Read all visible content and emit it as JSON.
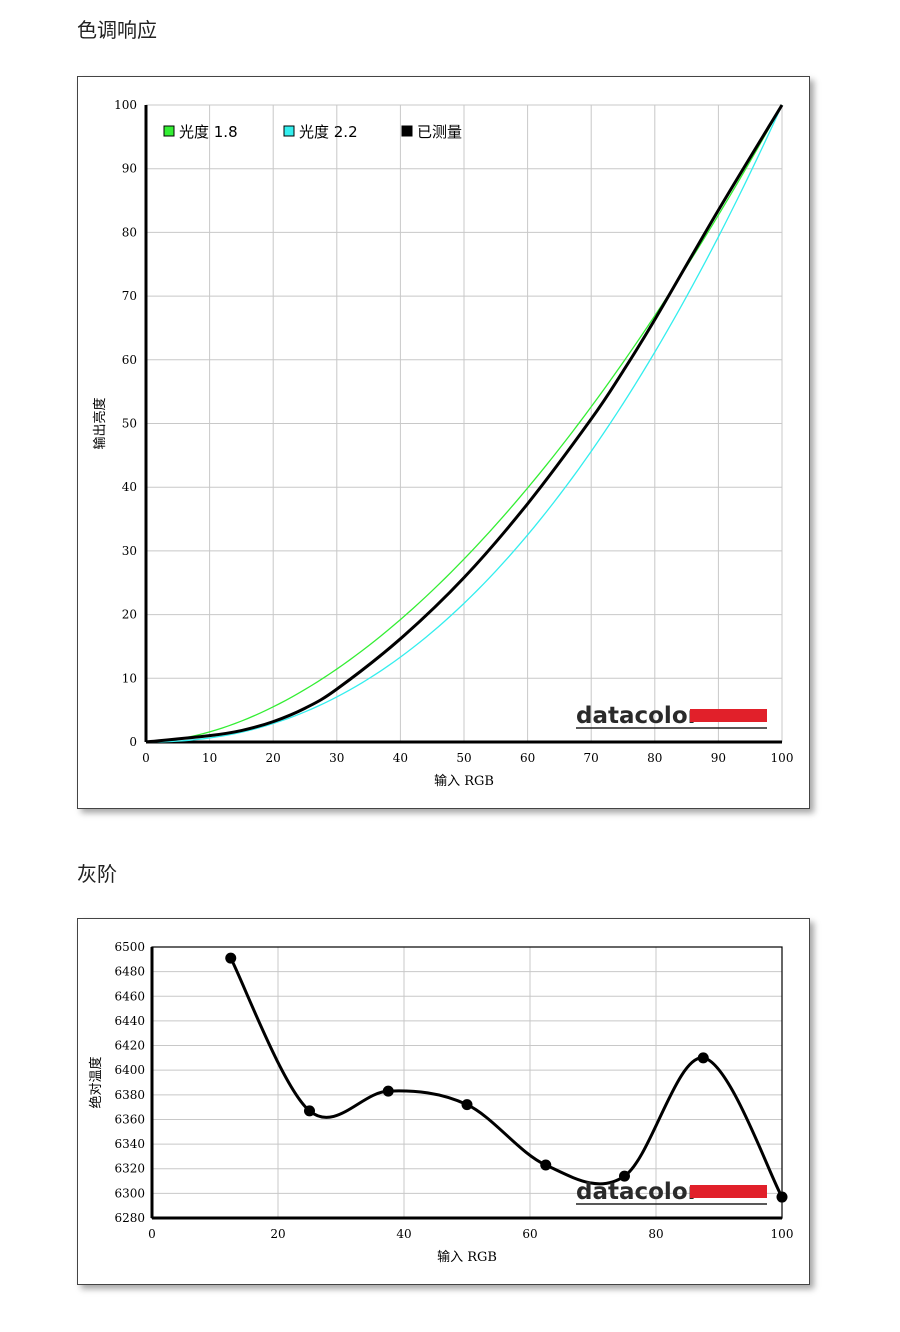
{
  "sections": {
    "tone_title": "色调响应",
    "gray_title": "灰阶"
  },
  "brand": {
    "text": "datacolor",
    "bar_color": "#e1202a"
  },
  "chart_data": [
    {
      "type": "line",
      "xlabel": "输入 RGB",
      "ylabel": "输出亮度",
      "xlim": [
        0,
        100
      ],
      "ylim": [
        0,
        100
      ],
      "xticks": [
        0,
        10,
        20,
        30,
        40,
        50,
        60,
        70,
        80,
        90,
        100
      ],
      "yticks": [
        0,
        10,
        20,
        30,
        40,
        50,
        60,
        70,
        80,
        90,
        100
      ],
      "grid": true,
      "legend_position": "top-left",
      "series": [
        {
          "name": "光度 1.8",
          "color": "#33ee33",
          "gamma": 1.8,
          "x": [
            0,
            10,
            20,
            30,
            40,
            50,
            60,
            70,
            80,
            90,
            100
          ],
          "y": [
            0,
            1.6,
            5.5,
            11.5,
            19.2,
            28.7,
            39.9,
            52.6,
            66.9,
            82.7,
            100
          ]
        },
        {
          "name": "光度 2.2",
          "color": "#33eeee",
          "gamma": 2.2,
          "x": [
            0,
            10,
            20,
            30,
            40,
            50,
            60,
            70,
            80,
            90,
            100
          ],
          "y": [
            0,
            0.6,
            2.9,
            7.1,
            13.3,
            21.8,
            32.5,
            45.6,
            61.2,
            79.3,
            100
          ]
        },
        {
          "name": "已测量",
          "color": "#000000",
          "x": [
            0,
            10,
            15,
            20,
            25,
            30,
            40,
            50,
            60,
            70,
            75,
            80,
            90,
            100
          ],
          "y": [
            0,
            1.0,
            1.8,
            3.2,
            5.3,
            8.3,
            16.2,
            25.8,
            37.4,
            50.7,
            58.2,
            66.3,
            83.5,
            100
          ]
        }
      ]
    },
    {
      "type": "line",
      "xlabel": "输入 RGB",
      "ylabel": "绝对温度",
      "xlim": [
        0,
        100
      ],
      "ylim": [
        6280,
        6500
      ],
      "xticks": [
        0,
        20,
        40,
        60,
        80,
        100
      ],
      "yticks": [
        6280,
        6300,
        6320,
        6340,
        6360,
        6380,
        6400,
        6420,
        6440,
        6460,
        6480,
        6500
      ],
      "grid": true,
      "series": [
        {
          "color": "#000000",
          "x": [
            12.5,
            25,
            37.5,
            50,
            62.5,
            75,
            87.5,
            100
          ],
          "y": [
            6491,
            6367,
            6383,
            6372,
            6323,
            6314,
            6410,
            6297
          ]
        }
      ]
    }
  ]
}
